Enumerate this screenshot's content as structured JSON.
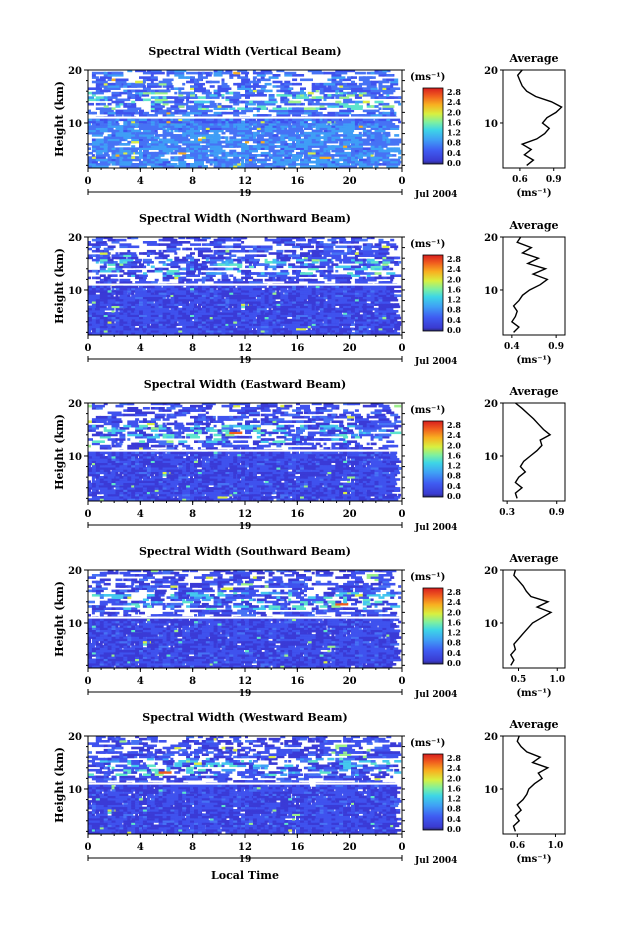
{
  "figure": {
    "xlabel": "Local Time",
    "date_label": "Jul 2004",
    "colorbar_unit": "(ms⁻¹)",
    "avg_title": "Average",
    "ylabel": "Height (km)",
    "day_label": "19"
  },
  "chart_data": [
    {
      "type": "heatmap",
      "title": "Spectral Width (Vertical Beam)",
      "xlabel": "Local Time",
      "ylabel": "Height (km)",
      "x_ticks": [
        "0",
        "4",
        "8",
        "12",
        "16",
        "20",
        "0"
      ],
      "y_ticks": [
        "10",
        "20"
      ],
      "xlim": [
        0,
        24
      ],
      "ylim": [
        1.5,
        20
      ],
      "colorbar": {
        "label": "(ms⁻¹)",
        "ticks": [
          "0.0",
          "0.4",
          "0.8",
          "1.2",
          "1.6",
          "2.0",
          "2.4",
          "2.8"
        ],
        "range": [
          0,
          3.0
        ]
      },
      "inset": {
        "title": "Average",
        "xlabel": "(ms⁻¹)",
        "x_ticks": [
          "0.6",
          "0.9"
        ],
        "xlim": [
          0.45,
          1.0
        ],
        "profile": {
          "height": [
            2,
            3,
            4,
            5,
            6,
            7,
            8,
            9,
            10,
            11,
            12,
            13,
            14,
            15,
            16,
            17,
            18,
            19,
            20
          ],
          "width": [
            0.66,
            0.72,
            0.64,
            0.7,
            0.62,
            0.75,
            0.82,
            0.86,
            0.8,
            0.84,
            0.92,
            0.97,
            0.88,
            0.74,
            0.66,
            0.62,
            0.6,
            0.58,
            0.62
          ]
        }
      }
    },
    {
      "type": "heatmap",
      "title": "Spectral Width (Northward Beam)",
      "xlabel": "",
      "ylabel": "Height (km)",
      "x_ticks": [
        "0",
        "4",
        "8",
        "12",
        "16",
        "20",
        "0"
      ],
      "y_ticks": [
        "10",
        "20"
      ],
      "xlim": [
        0,
        24
      ],
      "ylim": [
        1.5,
        20
      ],
      "colorbar": {
        "label": "(ms⁻¹)",
        "ticks": [
          "0.0",
          "0.4",
          "0.8",
          "1.2",
          "1.6",
          "2.0",
          "2.4",
          "2.8"
        ],
        "range": [
          0,
          3.0
        ]
      },
      "inset": {
        "title": "Average",
        "xlabel": "(ms⁻¹)",
        "x_ticks": [
          "0.4",
          "0.9"
        ],
        "xlim": [
          0.3,
          1.0
        ],
        "profile": {
          "height": [
            2,
            3,
            4,
            5,
            6,
            7,
            8,
            9,
            10,
            11,
            12,
            13,
            14,
            15,
            16,
            17,
            18,
            19,
            20
          ],
          "width": [
            0.42,
            0.48,
            0.4,
            0.44,
            0.46,
            0.42,
            0.48,
            0.52,
            0.6,
            0.72,
            0.8,
            0.64,
            0.78,
            0.58,
            0.7,
            0.52,
            0.62,
            0.46,
            0.5
          ]
        }
      }
    },
    {
      "type": "heatmap",
      "title": "Spectral Width (Eastward Beam)",
      "xlabel": "",
      "ylabel": "Height (km)",
      "x_ticks": [
        "0",
        "4",
        "8",
        "12",
        "16",
        "20",
        "0"
      ],
      "y_ticks": [
        "10",
        "20"
      ],
      "xlim": [
        0,
        24
      ],
      "ylim": [
        1.5,
        20
      ],
      "colorbar": {
        "label": "(ms⁻¹)",
        "ticks": [
          "0.0",
          "0.4",
          "0.8",
          "1.2",
          "1.6",
          "2.0",
          "2.4",
          "2.8"
        ],
        "range": [
          0,
          3.0
        ]
      },
      "inset": {
        "title": "Average",
        "xlabel": "",
        "x_ticks": [
          "0.3",
          "0.9"
        ],
        "xlim": [
          0.25,
          1.0
        ],
        "profile": {
          "height": [
            2,
            3,
            4,
            5,
            6,
            7,
            8,
            9,
            10,
            11,
            12,
            13,
            14,
            15,
            16,
            17,
            18,
            19,
            20
          ],
          "width": [
            0.42,
            0.4,
            0.48,
            0.4,
            0.44,
            0.52,
            0.46,
            0.5,
            0.58,
            0.66,
            0.72,
            0.7,
            0.82,
            0.74,
            0.68,
            0.62,
            0.55,
            0.48,
            0.4
          ]
        }
      }
    },
    {
      "type": "heatmap",
      "title": "Spectral Width (Southward Beam)",
      "xlabel": "",
      "ylabel": "Height (km)",
      "x_ticks": [
        "0",
        "4",
        "8",
        "12",
        "16",
        "20",
        "0"
      ],
      "y_ticks": [
        "10",
        "20"
      ],
      "xlim": [
        0,
        24
      ],
      "ylim": [
        1.5,
        20
      ],
      "colorbar": {
        "label": "(ms⁻¹)",
        "ticks": [
          "0.0",
          "0.4",
          "0.8",
          "1.2",
          "1.6",
          "2.0",
          "2.4",
          "2.8"
        ],
        "range": [
          0,
          3.0
        ]
      },
      "inset": {
        "title": "Average",
        "xlabel": "(ms⁻¹)",
        "x_ticks": [
          "0.5",
          "1.0"
        ],
        "xlim": [
          0.3,
          1.1
        ],
        "profile": {
          "height": [
            2,
            3,
            4,
            5,
            6,
            7,
            8,
            9,
            10,
            11,
            12,
            13,
            14,
            15,
            16,
            17,
            18,
            19,
            20
          ],
          "width": [
            0.4,
            0.44,
            0.4,
            0.46,
            0.44,
            0.5,
            0.56,
            0.62,
            0.68,
            0.8,
            0.92,
            0.74,
            0.88,
            0.66,
            0.6,
            0.56,
            0.5,
            0.44,
            0.46
          ]
        }
      }
    },
    {
      "type": "heatmap",
      "title": "Spectral Width (Westward Beam)",
      "xlabel": "Local Time",
      "ylabel": "Height (km)",
      "x_ticks": [
        "0",
        "4",
        "8",
        "12",
        "16",
        "20",
        "0"
      ],
      "y_ticks": [
        "10",
        "20"
      ],
      "xlim": [
        0,
        24
      ],
      "ylim": [
        1.5,
        20
      ],
      "colorbar": {
        "label": "(ms⁻¹)",
        "ticks": [
          "0.0",
          "0.4",
          "0.8",
          "1.2",
          "1.6",
          "2.0",
          "2.4",
          "2.8"
        ],
        "range": [
          0,
          3.0
        ]
      },
      "inset": {
        "title": "Average",
        "xlabel": "(ms⁻¹)",
        "x_ticks": [
          "0.6",
          "1.0"
        ],
        "xlim": [
          0.45,
          1.1
        ],
        "profile": {
          "height": [
            2,
            3,
            4,
            5,
            6,
            7,
            8,
            9,
            10,
            11,
            12,
            13,
            14,
            15,
            16,
            17,
            18,
            19,
            20
          ],
          "width": [
            0.58,
            0.56,
            0.62,
            0.58,
            0.64,
            0.6,
            0.66,
            0.7,
            0.72,
            0.78,
            0.86,
            0.82,
            0.92,
            0.76,
            0.84,
            0.7,
            0.64,
            0.6,
            0.62
          ]
        }
      }
    }
  ]
}
